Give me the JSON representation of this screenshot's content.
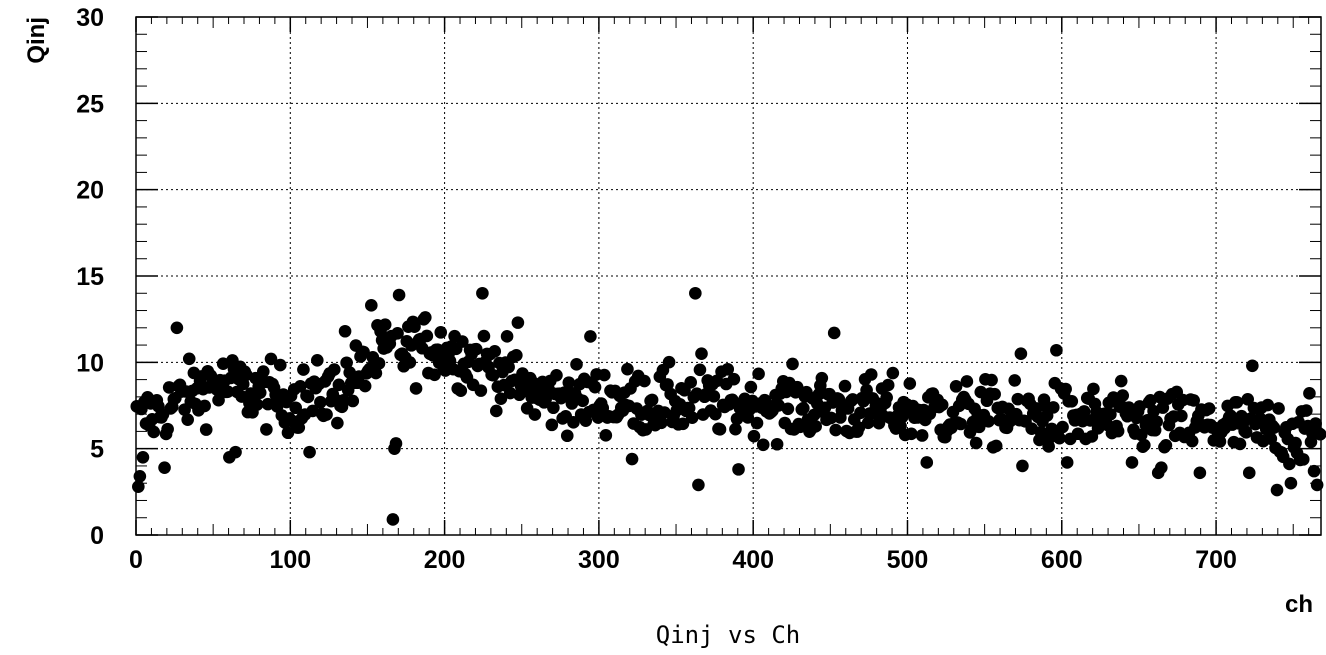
{
  "chart_data": {
    "type": "scatter",
    "caption": "Qinj vs Ch",
    "xlabel": "ch",
    "ylabel": "Qinj",
    "xlim": [
      0,
      768
    ],
    "ylim": [
      0,
      30
    ],
    "x_ticks": [
      "0",
      "100",
      "200",
      "300",
      "400",
      "500",
      "600",
      "700"
    ],
    "y_ticks": [
      "0",
      "5",
      "10",
      "15",
      "20",
      "25",
      "30"
    ],
    "grid": true,
    "marker_color": "#000000",
    "n_points": 768,
    "trend": [
      {
        "x": 0,
        "y": 6.5
      },
      {
        "x": 50,
        "y": 8.8
      },
      {
        "x": 100,
        "y": 7.8
      },
      {
        "x": 130,
        "y": 8.3
      },
      {
        "x": 160,
        "y": 10.5
      },
      {
        "x": 190,
        "y": 11.0
      },
      {
        "x": 230,
        "y": 9.8
      },
      {
        "x": 260,
        "y": 8.0
      },
      {
        "x": 300,
        "y": 7.8
      },
      {
        "x": 400,
        "y": 7.6
      },
      {
        "x": 500,
        "y": 7.2
      },
      {
        "x": 600,
        "y": 6.8
      },
      {
        "x": 700,
        "y": 6.3
      },
      {
        "x": 768,
        "y": 5.8
      }
    ],
    "highlighted_points": [
      {
        "x": 1,
        "y": 2.8
      },
      {
        "x": 2,
        "y": 3.4
      },
      {
        "x": 4,
        "y": 4.5
      },
      {
        "x": 18,
        "y": 3.9
      },
      {
        "x": 26,
        "y": 12.0
      },
      {
        "x": 60,
        "y": 4.5
      },
      {
        "x": 64,
        "y": 4.8
      },
      {
        "x": 112,
        "y": 4.8
      },
      {
        "x": 135,
        "y": 11.8
      },
      {
        "x": 152,
        "y": 13.3
      },
      {
        "x": 166,
        "y": 0.9
      },
      {
        "x": 167,
        "y": 5.0
      },
      {
        "x": 168,
        "y": 5.3
      },
      {
        "x": 170,
        "y": 13.9
      },
      {
        "x": 224,
        "y": 14.0
      },
      {
        "x": 247,
        "y": 12.3
      },
      {
        "x": 294,
        "y": 11.5
      },
      {
        "x": 321,
        "y": 4.4
      },
      {
        "x": 362,
        "y": 14.0
      },
      {
        "x": 364,
        "y": 2.9
      },
      {
        "x": 366,
        "y": 10.5
      },
      {
        "x": 390,
        "y": 3.8
      },
      {
        "x": 452,
        "y": 11.7
      },
      {
        "x": 512,
        "y": 4.2
      },
      {
        "x": 573,
        "y": 10.5
      },
      {
        "x": 574,
        "y": 4.0
      },
      {
        "x": 596,
        "y": 10.7
      },
      {
        "x": 603,
        "y": 4.2
      },
      {
        "x": 645,
        "y": 4.2
      },
      {
        "x": 662,
        "y": 3.6
      },
      {
        "x": 664,
        "y": 3.9
      },
      {
        "x": 689,
        "y": 3.6
      },
      {
        "x": 721,
        "y": 3.6
      },
      {
        "x": 723,
        "y": 9.8
      },
      {
        "x": 739,
        "y": 2.6
      },
      {
        "x": 748,
        "y": 3.0
      },
      {
        "x": 763,
        "y": 3.7
      },
      {
        "x": 765,
        "y": 2.9
      }
    ]
  }
}
